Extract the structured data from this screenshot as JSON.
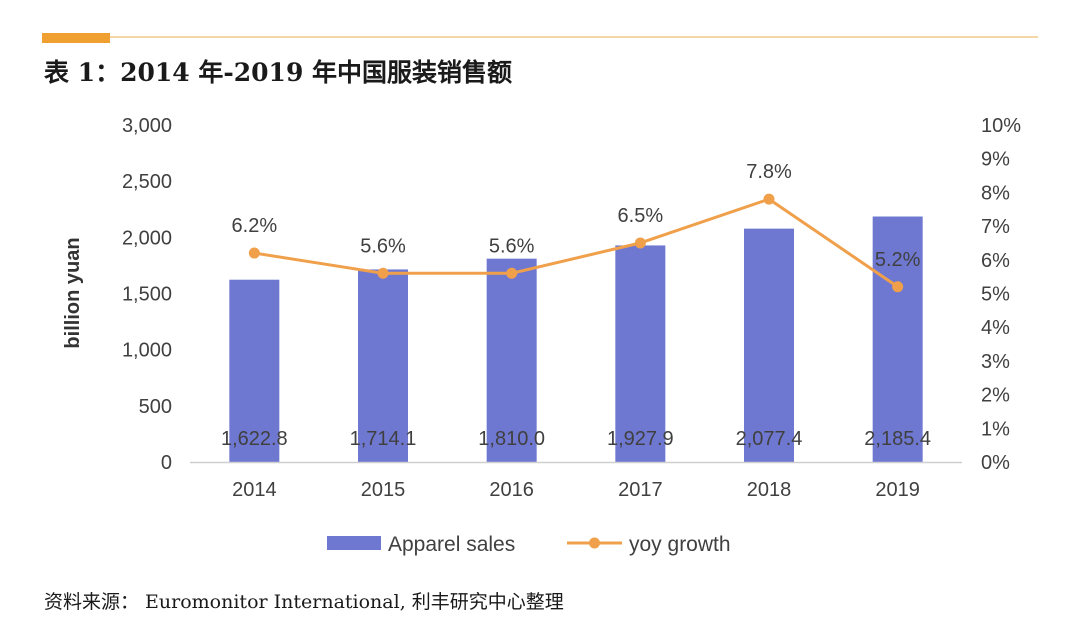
{
  "header": {
    "title": "表 1：2014 年-2019 年中国服装销售额",
    "accent_color": "#F0A030",
    "rule_color": "#F2C98A"
  },
  "source_note": "资料来源： Euromonitor International, 利丰研究中心整理",
  "chart_data": {
    "type": "bar",
    "categories": [
      "2014",
      "2015",
      "2016",
      "2017",
      "2018",
      "2019"
    ],
    "series": [
      {
        "name": "Apparel sales",
        "kind": "bar",
        "axis": "left",
        "color": "#6F78D0",
        "values": [
          1622.8,
          1714.1,
          1810.0,
          1927.9,
          2077.4,
          2185.4
        ],
        "labels": [
          "1,622.8",
          "1,714.1",
          "1,810.0",
          "1,927.9",
          "2,077.4",
          "2,185.4"
        ]
      },
      {
        "name": "yoy growth",
        "kind": "line",
        "axis": "right",
        "color": "#F0A04B",
        "values": [
          6.2,
          5.6,
          5.6,
          6.5,
          7.8,
          5.2
        ],
        "labels": [
          "6.2%",
          "5.6%",
          "5.6%",
          "6.5%",
          "7.8%",
          "5.2%"
        ]
      }
    ],
    "ylabel": "billion yuan",
    "y_left": {
      "range": [
        0,
        3000
      ],
      "ticks": [
        0,
        500,
        1000,
        1500,
        2000,
        2500,
        3000
      ],
      "tick_labels": [
        "0",
        "500",
        "1,000",
        "1,500",
        "2,000",
        "2,500",
        "3,000"
      ]
    },
    "y_right": {
      "range": [
        0,
        10
      ],
      "ticks": [
        0,
        1,
        2,
        3,
        4,
        5,
        6,
        7,
        8,
        9,
        10
      ],
      "tick_labels": [
        "0%",
        "1%",
        "2%",
        "3%",
        "4%",
        "5%",
        "6%",
        "7%",
        "8%",
        "9%",
        "10%"
      ]
    },
    "grid": false,
    "legend_position": "bottom"
  }
}
